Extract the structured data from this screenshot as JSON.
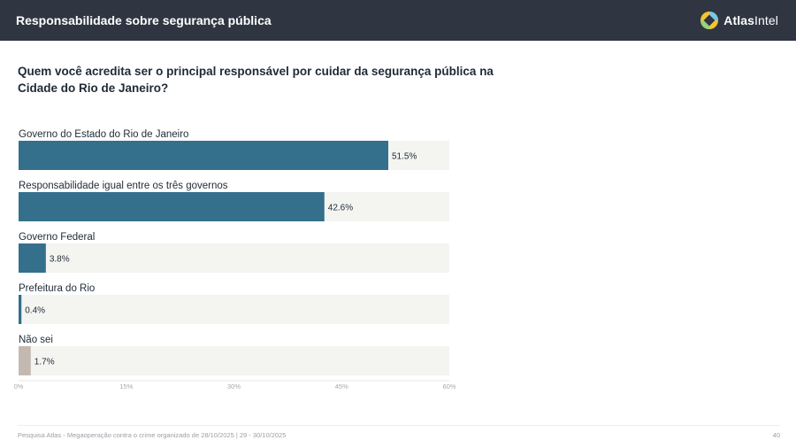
{
  "header": {
    "title": "Responsabilidade sobre segurança pública",
    "brand_bold": "Atlas",
    "brand_light": "Intel"
  },
  "question": "Quem você acredita ser o principal responsável por cuidar da segurança pública na Cidade do Rio de Janeiro?",
  "chart_data": {
    "type": "bar",
    "orientation": "horizontal",
    "categories": [
      "Governo do Estado do Rio de Janeiro",
      "Responsabilidade igual entre os três governos",
      "Governo Federal",
      "Prefeitura do Rio",
      "Não sei"
    ],
    "values": [
      51.5,
      42.6,
      3.8,
      0.4,
      1.7
    ],
    "value_labels": [
      "51.5%",
      "42.6%",
      "3.8%",
      "0.4%",
      "1.7%"
    ],
    "bar_colors": [
      "#346f8c",
      "#346f8c",
      "#346f8c",
      "#346f8c",
      "#c4b9b1"
    ],
    "track_color": "#f4f4f1",
    "xlim": [
      0,
      60
    ],
    "xticks": [
      0,
      15,
      30,
      45,
      60
    ],
    "xtick_labels": [
      "0%",
      "15%",
      "30%",
      "45%",
      "60%"
    ]
  },
  "footer": {
    "source": "Pesquisa Atlas - Megaoperação contra o crime organizado de 28/10/2025 | 29 - 30/10/2025",
    "page": "40"
  }
}
